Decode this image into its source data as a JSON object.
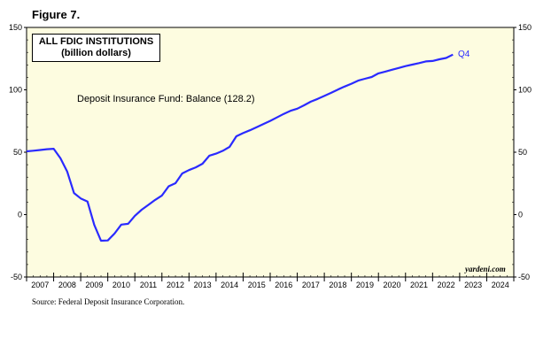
{
  "figure_label": "Figure 7.",
  "source_note": "Source: Federal Deposit Insurance Corporation.",
  "chart_data": {
    "type": "line",
    "title": "ALL FDIC INSTITUTIONS",
    "subtitle": "(billion dollars)",
    "annotation": "Deposit Insurance Fund: Balance (128.2)",
    "end_label": "Q4",
    "credit": "yardeni.com",
    "ylim": [
      -50,
      150
    ],
    "yticks": [
      -50,
      0,
      50,
      100,
      150
    ],
    "xlim": [
      2007,
      2025
    ],
    "xtick_labels": [
      "2007",
      "2008",
      "2009",
      "2010",
      "2011",
      "2012",
      "2013",
      "2014",
      "2015",
      "2016",
      "2017",
      "2018",
      "2019",
      "2020",
      "2021",
      "2022",
      "2023",
      "2024"
    ],
    "grid": false,
    "background_color": "#fdfce0",
    "series": [
      {
        "color": "#2a2aff",
        "x": [
          2007.0,
          2007.25,
          2007.5,
          2007.75,
          2008.0,
          2008.25,
          2008.5,
          2008.75,
          2009.0,
          2009.25,
          2009.5,
          2009.75,
          2010.0,
          2010.25,
          2010.5,
          2010.75,
          2011.0,
          2011.25,
          2011.5,
          2011.75,
          2012.0,
          2012.25,
          2012.5,
          2012.75,
          2013.0,
          2013.25,
          2013.5,
          2013.75,
          2014.0,
          2014.25,
          2014.5,
          2014.75,
          2015.0,
          2015.25,
          2015.5,
          2015.75,
          2016.0,
          2016.25,
          2016.5,
          2016.75,
          2017.0,
          2017.25,
          2017.5,
          2017.75,
          2018.0,
          2018.25,
          2018.5,
          2018.75,
          2019.0,
          2019.25,
          2019.5,
          2019.75,
          2020.0,
          2020.25,
          2020.5,
          2020.75,
          2021.0,
          2021.25,
          2021.5,
          2021.75,
          2022.0,
          2022.25,
          2022.5,
          2022.75
        ],
        "values": [
          50.7,
          51.2,
          51.8,
          52.4,
          52.8,
          45.2,
          34.6,
          17.3,
          13.0,
          10.4,
          -8.2,
          -20.9,
          -20.7,
          -15.2,
          -8.0,
          -7.4,
          -1.0,
          3.9,
          7.8,
          11.8,
          15.3,
          22.7,
          25.2,
          33.0,
          35.7,
          37.9,
          40.8,
          47.2,
          48.9,
          51.1,
          54.3,
          62.8,
          65.3,
          67.6,
          70.1,
          72.6,
          75.1,
          77.9,
          80.7,
          83.2,
          84.9,
          87.6,
          90.5,
          92.7,
          95.1,
          97.6,
          100.2,
          102.6,
          104.9,
          107.4,
          108.9,
          110.3,
          113.2,
          114.6,
          116.1,
          117.5,
          119.0,
          120.2,
          121.4,
          122.8,
          123.1,
          124.5,
          125.5,
          128.2
        ]
      }
    ]
  }
}
